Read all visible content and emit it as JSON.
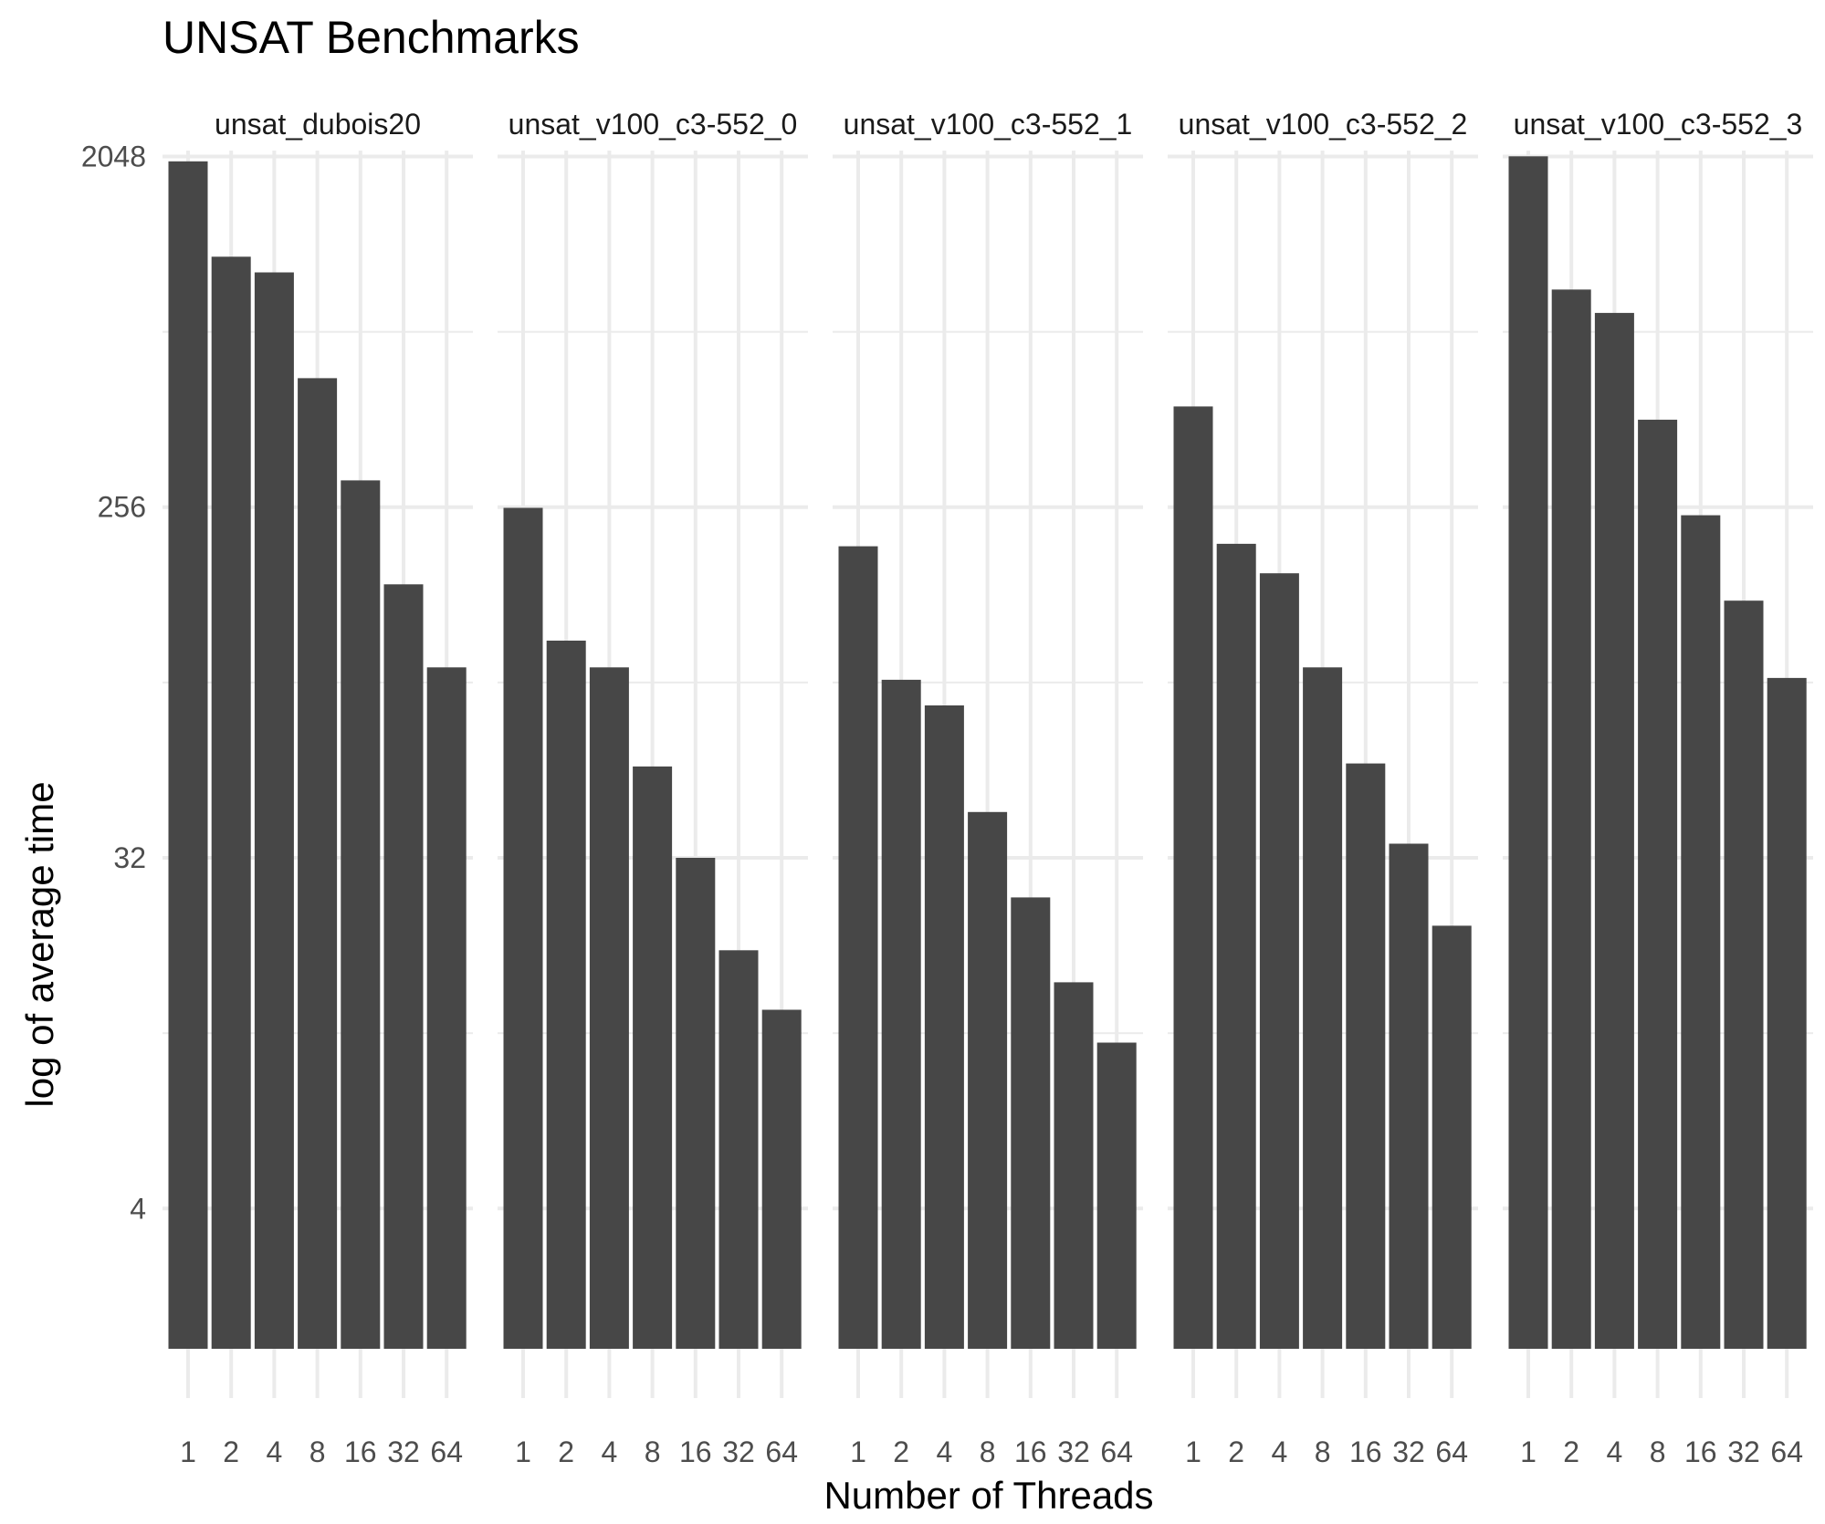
{
  "chart_data": {
    "type": "bar",
    "title": "UNSAT Benchmarks",
    "xlabel": "Number of Threads",
    "ylabel": "log of average time",
    "y_scale": "log2",
    "y_ticks": [
      4,
      32,
      256,
      2048
    ],
    "ylim": [
      1.3,
      2300
    ],
    "grid": true,
    "legend": "none",
    "bar_color": "#474747",
    "categories": [
      "1",
      "2",
      "4",
      "8",
      "16",
      "32",
      "64"
    ],
    "panels": [
      {
        "name": "unsat_dubois20",
        "label": "unsat_dubois20",
        "values": [
          1990,
          1130,
          1030,
          550,
          300,
          162,
          99
        ]
      },
      {
        "name": "unsat_v100_c3-552_0",
        "label": "unsat_v100_c3-552_0",
        "values": [
          255,
          116,
          99,
          55,
          32,
          18.5,
          13
        ]
      },
      {
        "name": "unsat_v100_c3-552_1",
        "label": "unsat_v100_c3-552_1",
        "values": [
          203,
          92,
          79,
          42,
          25.3,
          15.3,
          10.7
        ]
      },
      {
        "name": "unsat_v100_c3-552_2",
        "label": "unsat_v100_c3-552_2",
        "values": [
          465,
          206,
          173,
          99,
          56,
          34.8,
          21.4
        ]
      },
      {
        "name": "unsat_v100_c3-552_3",
        "label": "unsat_v100_c3-552_3",
        "values": [
          2050,
          930,
          810,
          430,
          244,
          147,
          93
        ]
      }
    ]
  }
}
